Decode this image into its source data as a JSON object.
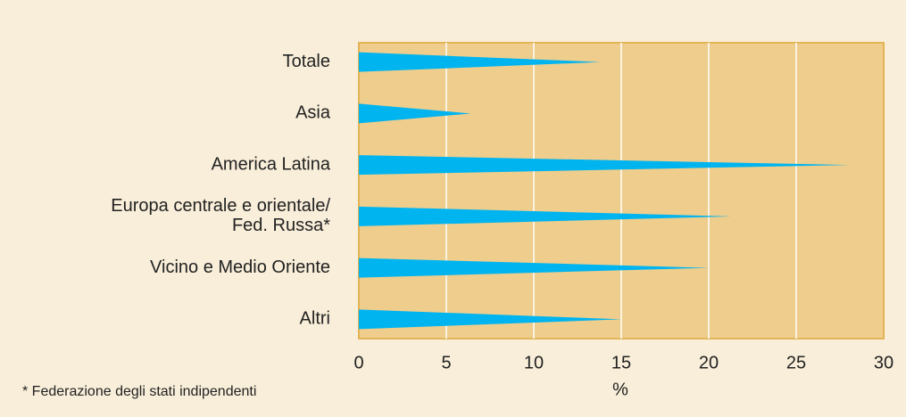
{
  "chart_data": {
    "type": "bar",
    "categories": [
      "Totale",
      "Asia",
      "America Latina",
      "Europa centrale e orientale/\nFed. Russa*",
      "Vicino e Medio Oriente",
      "Altri"
    ],
    "values": [
      13.8,
      6.4,
      28,
      21.3,
      20,
      15
    ],
    "color": "#00b4f0",
    "xlim": [
      0,
      30
    ],
    "xticks": [
      0,
      5,
      10,
      15,
      20,
      25,
      30
    ],
    "xlabel": "%",
    "note": "* Federazione degli stati indipendenti",
    "grid": true
  }
}
